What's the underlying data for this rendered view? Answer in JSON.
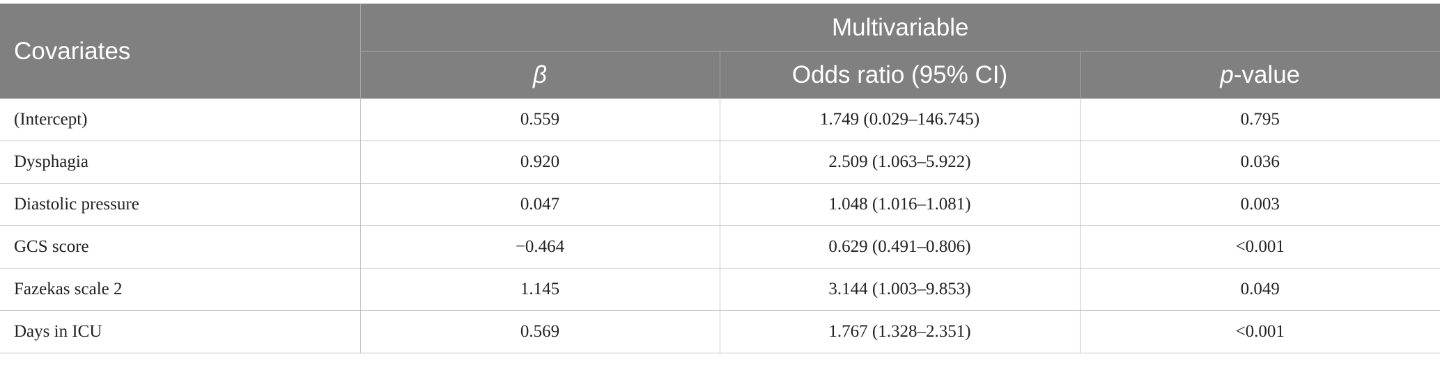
{
  "header": {
    "covariates_label": "Covariates",
    "group_label": "Multivariable",
    "beta_label": "β",
    "or_label": "Odds ratio (95% CI)",
    "p_italic": "p",
    "p_suffix": "-value"
  },
  "rows": [
    {
      "covariate": "(Intercept)",
      "beta": "0.559",
      "odds_ratio": "1.749 (0.029–146.745)",
      "p_value": "0.795"
    },
    {
      "covariate": "Dysphagia",
      "beta": "0.920",
      "odds_ratio": "2.509 (1.063–5.922)",
      "p_value": "0.036"
    },
    {
      "covariate": "Diastolic pressure",
      "beta": "0.047",
      "odds_ratio": "1.048 (1.016–1.081)",
      "p_value": "0.003"
    },
    {
      "covariate": "GCS score",
      "beta": "−0.464",
      "odds_ratio": "0.629 (0.491–0.806)",
      "p_value": "<0.001"
    },
    {
      "covariate": "Fazekas scale 2",
      "beta": "1.145",
      "odds_ratio": "3.144 (1.003–9.853)",
      "p_value": "0.049"
    },
    {
      "covariate": "Days in ICU",
      "beta": "0.569",
      "odds_ratio": "1.767 (1.328–2.351)",
      "p_value": "<0.001"
    }
  ]
}
